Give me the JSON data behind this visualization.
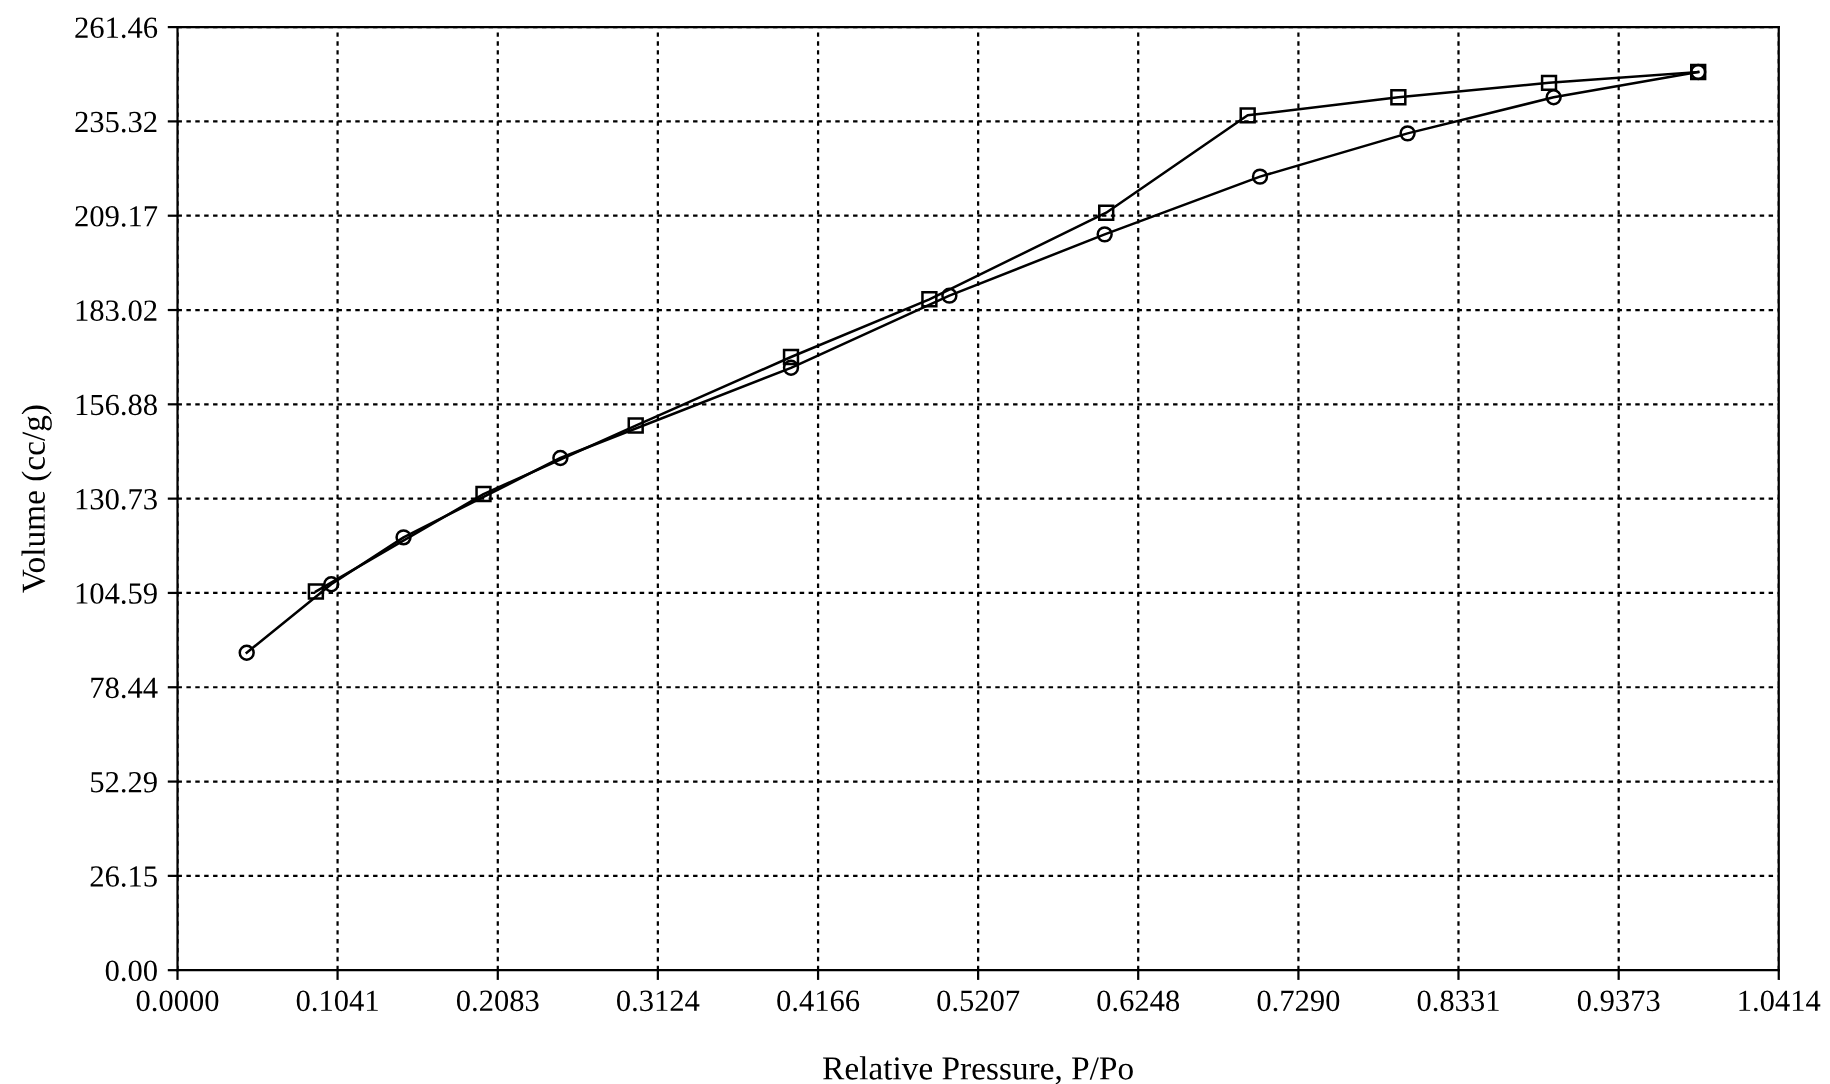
{
  "chart_data": {
    "type": "line",
    "xlabel": "Relative Pressure, P/Po",
    "ylabel": "Volume (cc/g)",
    "xlim": [
      0,
      1.0414
    ],
    "ylim": [
      0,
      261.46
    ],
    "xticks": [
      {
        "value": 0,
        "label": "0.0000"
      },
      {
        "value": 0.1041,
        "label": "0.1041"
      },
      {
        "value": 0.2083,
        "label": "0.2083"
      },
      {
        "value": 0.3124,
        "label": "0.3124"
      },
      {
        "value": 0.4166,
        "label": "0.4166"
      },
      {
        "value": 0.5207,
        "label": "0.5207"
      },
      {
        "value": 0.6248,
        "label": "0.6248"
      },
      {
        "value": 0.729,
        "label": "0.7290"
      },
      {
        "value": 0.8331,
        "label": "0.8331"
      },
      {
        "value": 0.9373,
        "label": "0.9373"
      },
      {
        "value": 1.0414,
        "label": "1.0414"
      }
    ],
    "yticks": [
      {
        "value": 0,
        "label": "0.00"
      },
      {
        "value": 26.15,
        "label": "26.15"
      },
      {
        "value": 52.29,
        "label": "52.29"
      },
      {
        "value": 78.44,
        "label": "78.44"
      },
      {
        "value": 104.59,
        "label": "104.59"
      },
      {
        "value": 130.73,
        "label": "130.73"
      },
      {
        "value": 156.88,
        "label": "156.88"
      },
      {
        "value": 183.02,
        "label": "183.02"
      },
      {
        "value": 209.17,
        "label": "209.17"
      },
      {
        "value": 235.32,
        "label": "235.32"
      },
      {
        "value": 261.46,
        "label": "261.46"
      }
    ],
    "grid": true,
    "line_style": "solid",
    "series": [
      {
        "color": "#000000",
        "marker": "circle",
        "x": [
          0.045,
          0.1,
          0.147,
          0.249,
          0.399,
          0.502,
          0.603,
          0.704,
          0.8,
          0.895,
          0.989
        ],
        "values": [
          88,
          107,
          120,
          142,
          167,
          187,
          204,
          220,
          232,
          242,
          249
        ]
      },
      {
        "color": "#000000",
        "marker": "square",
        "x": [
          0.989,
          0.892,
          0.794,
          0.696,
          0.604,
          0.489,
          0.399,
          0.298,
          0.199,
          0.09
        ],
        "values": [
          249,
          246,
          242,
          237,
          210,
          186,
          170,
          151,
          132,
          105
        ]
      }
    ]
  }
}
